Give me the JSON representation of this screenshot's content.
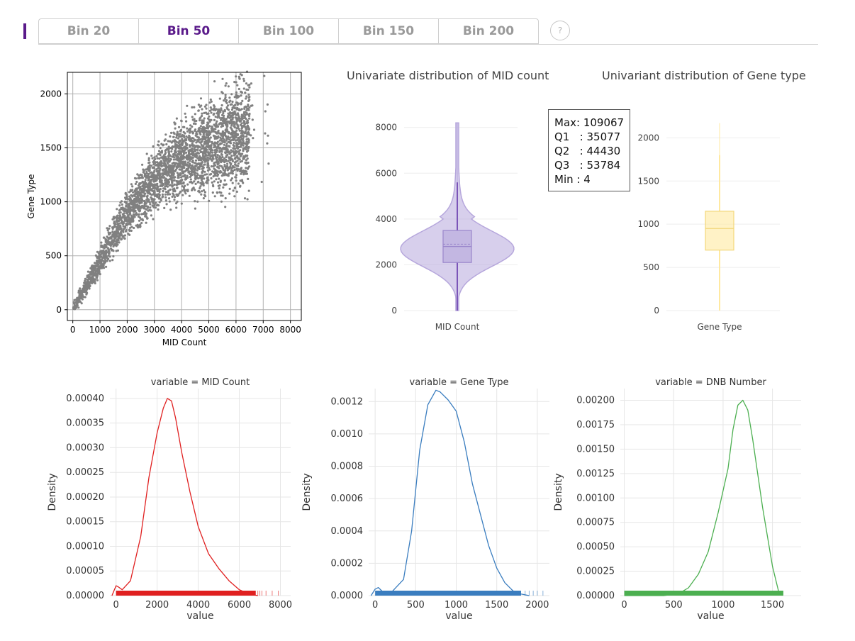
{
  "tabs": [
    {
      "label": "Bin 20",
      "active": false
    },
    {
      "label": "Bin 50",
      "active": true
    },
    {
      "label": "Bin 100",
      "active": false
    },
    {
      "label": "Bin 150",
      "active": false
    },
    {
      "label": "Bin 200",
      "active": false
    }
  ],
  "help_label": "?",
  "accent_color": "#5a1a8a",
  "scatter": {
    "chart_data": {
      "type": "scatter",
      "xlabel": "MID Count",
      "ylabel": "Gene Type",
      "xlim": [
        -200,
        8400
      ],
      "ylim": [
        -100,
        2200
      ],
      "xticks": [
        0,
        1000,
        2000,
        3000,
        4000,
        5000,
        6000,
        7000,
        8000
      ],
      "yticks": [
        0,
        500,
        1000,
        1500,
        2000
      ],
      "color": "#808080",
      "trend": [
        [
          0,
          0
        ],
        [
          1000,
          450
        ],
        [
          2000,
          900
        ],
        [
          3000,
          1200
        ],
        [
          4000,
          1400
        ],
        [
          5000,
          1520
        ],
        [
          6000,
          1600
        ],
        [
          7000,
          1700
        ]
      ],
      "grid": true
    }
  },
  "violin_mid": {
    "title": "Univariate distribution of MID count",
    "chart_data": {
      "type": "violin",
      "category": "MID Count",
      "ylim": [
        0,
        8300
      ],
      "yticks": [
        0,
        2000,
        4000,
        6000,
        8000
      ],
      "q1": 2100,
      "median": 2800,
      "mean": 2900,
      "q3": 3500,
      "whisker_low": 0,
      "whisker_high": 5600,
      "max": 8200,
      "color": "#b6a7dc"
    }
  },
  "violin_gene": {
    "title": "Univariant distribution of Gene type",
    "chart_data": {
      "type": "violin",
      "category": "Gene Type",
      "ylim": [
        0,
        2200
      ],
      "yticks": [
        0,
        500,
        1000,
        1500,
        2000
      ],
      "q1": 700,
      "median": 950,
      "q3": 1150,
      "whisker_low": 0,
      "whisker_high": 1800,
      "max": 2170,
      "color": "#ffe9a0"
    }
  },
  "tooltip": {
    "lines": [
      "Max: 109067",
      "Q1   : 35077",
      "Q2   : 44430",
      "Q3   : 53784",
      "Min : 4"
    ]
  },
  "kde_mid": {
    "title": "variable = MID Count",
    "chart_data": {
      "type": "line",
      "xlabel": "value",
      "ylabel": "Density",
      "xlim": [
        -300,
        8500
      ],
      "ylim": [
        0,
        0.00042
      ],
      "xticks": [
        0,
        2000,
        4000,
        6000,
        8000
      ],
      "yticks": [
        "0.00000",
        "0.00005",
        "0.00010",
        "0.00015",
        "0.00020",
        "0.00025",
        "0.00030",
        "0.00035",
        "0.00040"
      ],
      "color": "#e02020",
      "x": [
        -200,
        0,
        100,
        300,
        700,
        1200,
        1600,
        2000,
        2300,
        2500,
        2700,
        2900,
        3200,
        3600,
        4000,
        4500,
        5000,
        5500,
        6000,
        6500,
        6900
      ],
      "y": [
        0,
        2e-05,
        1.8e-05,
        1.2e-05,
        3e-05,
        0.00012,
        0.00024,
        0.00033,
        0.00038,
        0.0004,
        0.000395,
        0.00036,
        0.00029,
        0.00021,
        0.00014,
        8.5e-05,
        5.5e-05,
        3e-05,
        1.2e-05,
        3e-06,
        0
      ],
      "rug_range": [
        0,
        6800
      ],
      "rug_extra": [
        6900,
        7000,
        7100,
        7300,
        7600,
        7900
      ]
    }
  },
  "kde_gene": {
    "title": "variable = Gene Type",
    "chart_data": {
      "type": "line",
      "xlabel": "value",
      "ylabel": "Density",
      "xlim": [
        -80,
        2150
      ],
      "ylim": [
        0,
        0.00128
      ],
      "xticks": [
        0,
        500,
        1000,
        1500,
        2000
      ],
      "yticks": [
        "0.0000",
        "0.0002",
        "0.0004",
        "0.0006",
        "0.0008",
        "0.0010",
        "0.0012"
      ],
      "color": "#3a7dbf",
      "x": [
        -50,
        0,
        40,
        100,
        200,
        350,
        450,
        550,
        650,
        750,
        800,
        900,
        1000,
        1100,
        1200,
        1300,
        1400,
        1500,
        1600,
        1700,
        1800,
        1900
      ],
      "y": [
        0,
        4e-05,
        5e-05,
        2e-05,
        2e-05,
        0.0001,
        0.0004,
        0.0009,
        0.00118,
        0.00127,
        0.00126,
        0.00121,
        0.00114,
        0.00095,
        0.00069,
        0.0005,
        0.00031,
        0.00017,
        8e-05,
        3e-05,
        1e-05,
        0
      ],
      "rug_range": [
        0,
        1800
      ],
      "rug_extra": [
        1850,
        1900,
        1950,
        2000,
        2070
      ]
    }
  },
  "kde_dnb": {
    "title": "variable = DNB Number",
    "chart_data": {
      "type": "line",
      "xlabel": "value",
      "ylabel": "Density",
      "xlim": [
        -40,
        1790
      ],
      "ylim": [
        0,
        0.00212
      ],
      "xticks": [
        0,
        500,
        1000,
        1500
      ],
      "yticks": [
        "0.00000",
        "0.00025",
        "0.00050",
        "0.00075",
        "0.00100",
        "0.00125",
        "0.00150",
        "0.00175",
        "0.00200"
      ],
      "color": "#4caf50",
      "x": [
        0,
        400,
        550,
        650,
        750,
        850,
        950,
        1050,
        1100,
        1150,
        1200,
        1250,
        1300,
        1400,
        1500,
        1560,
        1600
      ],
      "y": [
        0,
        0,
        2e-05,
        8e-05,
        0.00022,
        0.00045,
        0.00085,
        0.0013,
        0.0017,
        0.00195,
        0.002,
        0.0019,
        0.0016,
        0.0009,
        0.0003,
        5e-05,
        0
      ],
      "rug_range": [
        0,
        1610
      ],
      "rug_extra": []
    }
  }
}
